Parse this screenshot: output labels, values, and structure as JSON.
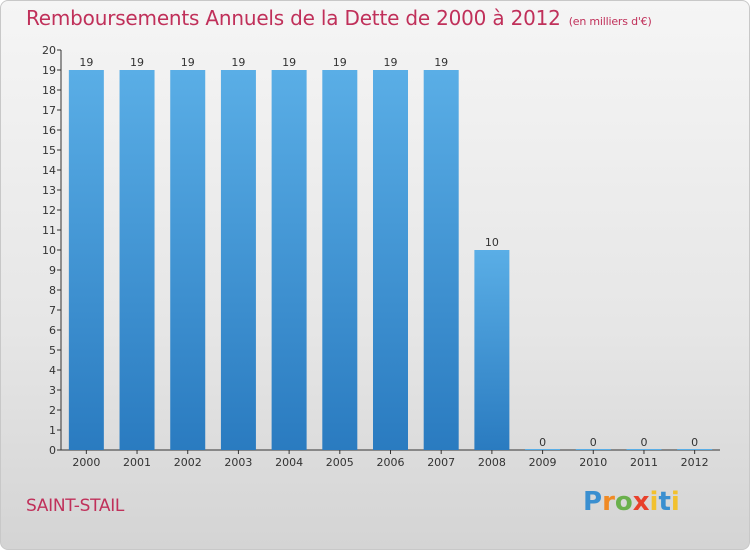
{
  "chart_data": {
    "type": "bar",
    "title": "Remboursements Annuels de la Dette de 2000 à 2012",
    "subtitle": "(en milliers d'€)",
    "categories": [
      "2000",
      "2001",
      "2002",
      "2003",
      "2004",
      "2005",
      "2006",
      "2007",
      "2008",
      "2009",
      "2010",
      "2011",
      "2012"
    ],
    "values": [
      19,
      19,
      19,
      19,
      19,
      19,
      19,
      19,
      10,
      0,
      0,
      0,
      0
    ],
    "data_labels": [
      "19",
      "19",
      "19",
      "19",
      "19",
      "19",
      "19",
      "19",
      "10",
      "0",
      "0",
      "0",
      "0"
    ],
    "ylim": [
      0,
      20
    ],
    "yticks": [
      0,
      1,
      2,
      3,
      4,
      5,
      6,
      7,
      8,
      9,
      10,
      11,
      12,
      13,
      14,
      15,
      16,
      17,
      18,
      19,
      20
    ],
    "xlabel": "",
    "ylabel": "",
    "grid": false,
    "colors": {
      "bar_top": "#5aaee6",
      "bar_bottom": "#2a7bc0",
      "title": "#c0305a",
      "axis": "#333333"
    }
  },
  "footer": {
    "commune": "SAINT-STAIL"
  },
  "logo": {
    "text": "Proxiti"
  }
}
